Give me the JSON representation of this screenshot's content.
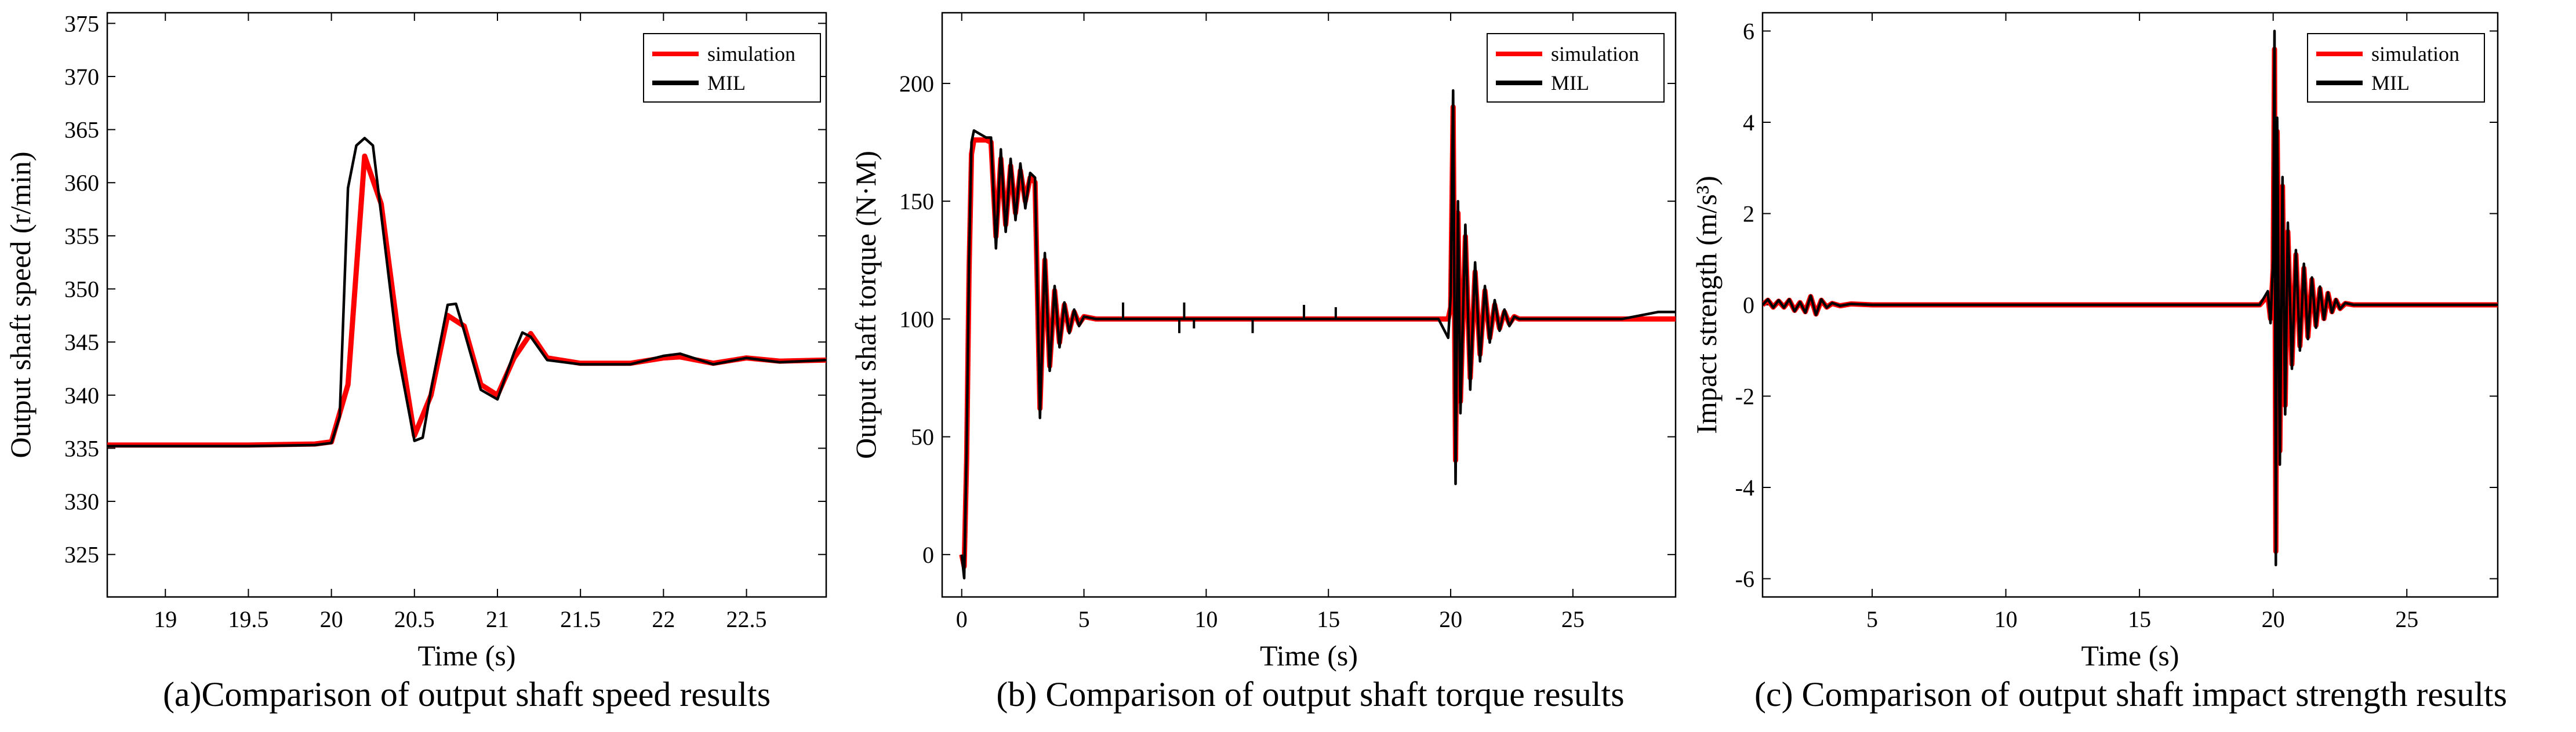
{
  "figure": {
    "colors": {
      "simulation": "#ff0000",
      "mil": "#000000",
      "axes": "#000000"
    }
  },
  "chart_data": [
    {
      "type": "line",
      "caption": "(a)Comparison of output shaft speed results",
      "xlabel": "Time (s)",
      "ylabel": "Output shaft speed (r/min)",
      "xlim": [
        18.65,
        22.98
      ],
      "ylim": [
        321,
        376
      ],
      "xticks": [
        19,
        19.5,
        20,
        20.5,
        21,
        21.5,
        22,
        22.5
      ],
      "xtick_labels": [
        "19",
        "19.5",
        "20",
        "20.5",
        "21",
        "21.5",
        "22",
        "22.5"
      ],
      "yticks": [
        325,
        330,
        335,
        340,
        345,
        350,
        355,
        360,
        365,
        370,
        375
      ],
      "ytick_labels": [
        "325",
        "330",
        "335",
        "340",
        "345",
        "350",
        "355",
        "360",
        "365",
        "370",
        "375"
      ],
      "legend": {
        "location": "top-right",
        "entries": [
          "simulation",
          "MIL"
        ]
      },
      "series": [
        {
          "name": "simulation",
          "x": [
            18.65,
            19.0,
            19.5,
            19.9,
            20.0,
            20.1,
            20.2,
            20.3,
            20.4,
            20.5,
            20.6,
            20.7,
            20.8,
            20.9,
            21.0,
            21.1,
            21.2,
            21.3,
            21.5,
            21.8,
            22.0,
            22.1,
            22.3,
            22.5,
            22.7,
            22.98
          ],
          "y": [
            335.3,
            335.3,
            335.3,
            335.4,
            335.6,
            341.0,
            362.5,
            358.0,
            346.0,
            336.2,
            340.0,
            347.5,
            346.5,
            341.0,
            340.0,
            343.5,
            345.8,
            343.5,
            343.0,
            343.0,
            343.5,
            343.6,
            343.0,
            343.5,
            343.2,
            343.3
          ]
        },
        {
          "name": "MIL",
          "x": [
            18.65,
            19.0,
            19.5,
            19.9,
            20.0,
            20.05,
            20.1,
            20.15,
            20.2,
            20.25,
            20.3,
            20.4,
            20.5,
            20.55,
            20.6,
            20.7,
            20.75,
            20.8,
            20.9,
            21.0,
            21.1,
            21.15,
            21.2,
            21.3,
            21.5,
            21.8,
            22.0,
            22.1,
            22.3,
            22.5,
            22.7,
            22.98
          ],
          "y": [
            335.2,
            335.2,
            335.2,
            335.3,
            335.5,
            338.0,
            359.5,
            363.5,
            364.2,
            363.5,
            357.0,
            344.0,
            335.7,
            336.0,
            340.5,
            348.5,
            348.6,
            346.0,
            340.5,
            339.6,
            344.0,
            345.9,
            345.5,
            343.3,
            342.9,
            342.9,
            343.7,
            343.9,
            342.9,
            343.5,
            343.1,
            343.3
          ]
        }
      ]
    },
    {
      "type": "line",
      "caption": "(b) Comparison of output shaft torque results",
      "xlabel": "Time (s)",
      "ylabel": "Output shaft torque (N·M)",
      "xlim": [
        -0.8,
        29.2
      ],
      "ylim": [
        -18,
        230
      ],
      "xticks": [
        0,
        5,
        10,
        15,
        20,
        25
      ],
      "xtick_labels": [
        "0",
        "5",
        "10",
        "15",
        "20",
        "25"
      ],
      "yticks": [
        0,
        50,
        100,
        150,
        200
      ],
      "ytick_labels": [
        "0",
        "50",
        "100",
        "150",
        "200"
      ],
      "legend": {
        "location": "top-right",
        "entries": [
          "simulation",
          "MIL"
        ]
      },
      "series": [
        {
          "name": "simulation",
          "x": [
            0,
            0.1,
            0.2,
            0.3,
            0.4,
            0.5,
            1.0,
            1.2,
            1.4,
            1.6,
            1.8,
            2.0,
            2.2,
            2.4,
            2.6,
            2.8,
            3.0,
            3.2,
            3.4,
            3.6,
            3.8,
            4.0,
            4.2,
            4.4,
            4.6,
            4.8,
            5.0,
            5.5,
            6,
            10,
            15,
            19.5,
            19.9,
            20.0,
            20.1,
            20.2,
            20.3,
            20.4,
            20.6,
            20.8,
            21.0,
            21.2,
            21.4,
            21.6,
            21.8,
            22.0,
            22.2,
            22.4,
            22.6,
            22.8,
            23,
            25,
            27,
            29.2
          ],
          "y": [
            0,
            -5,
            40,
            120,
            170,
            176,
            176,
            175,
            135,
            168,
            140,
            165,
            145,
            163,
            150,
            160,
            158,
            62,
            125,
            80,
            112,
            90,
            106,
            95,
            103,
            98,
            101,
            100,
            100,
            100,
            100,
            100,
            100,
            105,
            190,
            40,
            145,
            65,
            135,
            75,
            120,
            85,
            112,
            92,
            106,
            96,
            103,
            98,
            101,
            100,
            100,
            100,
            100,
            100
          ]
        },
        {
          "name": "MIL",
          "x": [
            0,
            0.1,
            0.2,
            0.3,
            0.4,
            0.5,
            1.0,
            1.2,
            1.4,
            1.6,
            1.8,
            2.0,
            2.2,
            2.4,
            2.6,
            2.8,
            3.0,
            3.2,
            3.4,
            3.6,
            3.8,
            4.0,
            4.2,
            4.4,
            4.6,
            4.8,
            5.0,
            5.5,
            6,
            10,
            15,
            19.5,
            19.9,
            20.0,
            20.1,
            20.2,
            20.3,
            20.4,
            20.6,
            20.8,
            21.0,
            21.2,
            21.4,
            21.6,
            21.8,
            22.0,
            22.2,
            22.4,
            22.6,
            22.8,
            23,
            25,
            27,
            28.5,
            29.2
          ],
          "y": [
            0,
            -10,
            45,
            125,
            175,
            180,
            177,
            177,
            130,
            172,
            137,
            168,
            142,
            166,
            147,
            162,
            160,
            58,
            128,
            78,
            114,
            88,
            107,
            94,
            104,
            97,
            101,
            100,
            100,
            100,
            100,
            100,
            92,
            110,
            197,
            30,
            150,
            60,
            140,
            70,
            124,
            82,
            114,
            90,
            108,
            95,
            104,
            97,
            101,
            100,
            100,
            100,
            100,
            103,
            103
          ]
        }
      ],
      "annotations": [
        {
          "type": "spike",
          "series": "MIL",
          "x": 6.6,
          "y_from": 100,
          "y_to": 107
        },
        {
          "type": "spike",
          "series": "MIL",
          "x": 8.9,
          "y_from": 100,
          "y_to": 94
        },
        {
          "type": "spike",
          "series": "MIL",
          "x": 9.1,
          "y_from": 100,
          "y_to": 107
        },
        {
          "type": "spike",
          "series": "MIL",
          "x": 9.5,
          "y_from": 100,
          "y_to": 96
        },
        {
          "type": "spike",
          "series": "MIL",
          "x": 11.9,
          "y_from": 100,
          "y_to": 94
        },
        {
          "type": "spike",
          "series": "MIL",
          "x": 14.0,
          "y_from": 100,
          "y_to": 106
        },
        {
          "type": "spike",
          "series": "MIL",
          "x": 15.3,
          "y_from": 100,
          "y_to": 105
        }
      ]
    },
    {
      "type": "line",
      "caption": "(c) Comparison of output shaft impact strength results",
      "xlabel": "Time (s)",
      "ylabel": "Impact strength (m/s³)",
      "xlim": [
        0.9,
        28.4
      ],
      "ylim": [
        -6.4,
        6.4
      ],
      "xticks": [
        5,
        10,
        15,
        20,
        25
      ],
      "xtick_labels": [
        "5",
        "10",
        "15",
        "20",
        "25"
      ],
      "yticks": [
        -6,
        -4,
        -2,
        0,
        2,
        4,
        6
      ],
      "ytick_labels": [
        "-6",
        "-4",
        "-2",
        "0",
        "2",
        "4",
        "6"
      ],
      "legend": {
        "location": "top-right",
        "entries": [
          "simulation",
          "MIL"
        ]
      },
      "series": [
        {
          "name": "simulation",
          "x": [
            0.9,
            1.1,
            1.3,
            1.5,
            1.7,
            1.9,
            2.1,
            2.3,
            2.5,
            2.7,
            2.9,
            3.1,
            3.3,
            3.5,
            3.8,
            4.2,
            5,
            10,
            15,
            19.5,
            19.8,
            19.9,
            20.0,
            20.05,
            20.1,
            20.15,
            20.25,
            20.35,
            20.45,
            20.55,
            20.7,
            20.85,
            21.0,
            21.15,
            21.3,
            21.45,
            21.6,
            21.75,
            21.9,
            22.05,
            22.2,
            22.35,
            22.5,
            22.7,
            23,
            28.4
          ],
          "y": [
            0,
            0.1,
            -0.05,
            0.08,
            -0.05,
            0.1,
            -0.12,
            0.05,
            -0.15,
            0.18,
            -0.2,
            0.1,
            -0.05,
            0.03,
            -0.02,
            0.02,
            0,
            0,
            0,
            0,
            0.2,
            -0.3,
            0.8,
            5.6,
            -5.4,
            3.8,
            -3.2,
            2.6,
            -2.2,
            1.6,
            -1.3,
            1.1,
            -0.9,
            0.8,
            -0.7,
            0.55,
            -0.45,
            0.35,
            -0.3,
            0.25,
            -0.15,
            0.1,
            -0.08,
            0.03,
            0,
            0
          ]
        },
        {
          "name": "MIL",
          "x": [
            0.9,
            1.1,
            1.3,
            1.5,
            1.7,
            1.9,
            2.1,
            2.3,
            2.5,
            2.7,
            2.9,
            3.1,
            3.3,
            3.5,
            3.8,
            4.2,
            5,
            10,
            15,
            19.5,
            19.8,
            19.9,
            20.0,
            20.05,
            20.1,
            20.15,
            20.25,
            20.35,
            20.45,
            20.55,
            20.7,
            20.85,
            21.0,
            21.15,
            21.3,
            21.45,
            21.6,
            21.75,
            21.9,
            22.05,
            22.2,
            22.35,
            22.5,
            22.7,
            23,
            28.4
          ],
          "y": [
            0,
            0.12,
            -0.06,
            0.1,
            -0.06,
            0.12,
            -0.14,
            0.06,
            -0.17,
            0.2,
            -0.22,
            0.12,
            -0.06,
            0.04,
            -0.02,
            0.02,
            0,
            0,
            0,
            0,
            0.3,
            -0.4,
            1.0,
            6.0,
            -5.7,
            4.1,
            -3.5,
            2.8,
            -2.4,
            1.8,
            -1.4,
            1.2,
            -1.0,
            0.9,
            -0.75,
            0.6,
            -0.5,
            0.4,
            -0.32,
            0.27,
            -0.17,
            0.12,
            -0.09,
            0.04,
            0,
            0
          ]
        }
      ]
    }
  ]
}
